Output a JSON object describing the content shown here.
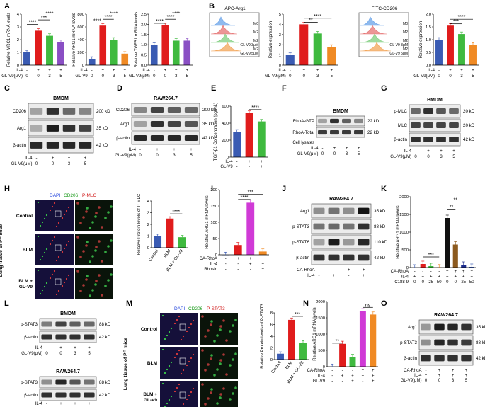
{
  "letters": [
    "A",
    "B",
    "C",
    "D",
    "E",
    "F",
    "G",
    "H",
    "I",
    "J",
    "K",
    "L",
    "M",
    "N",
    "O"
  ],
  "significance": {
    "p4": "****",
    "p3": "***",
    "p2": "**",
    "ns": "ns"
  },
  "colors": {
    "blue": "#3a5bb3",
    "red": "#e01c1c",
    "green": "#3fba3f",
    "orange": "#f08a24",
    "purple": "#8a4fc4",
    "magenta": "#d03ad6",
    "black": "#111111",
    "brown": "#8c5a1e",
    "navy": "#1b2b8c"
  },
  "conditions": {
    "il4_label": "IL-4",
    "glv9_label": "GL-V9",
    "glv9_um_label": "GL-V9(μM)",
    "glv9_um_label_spaced": "GL-V9(μM)",
    "signs": [
      "-",
      "+",
      "+",
      "+"
    ],
    "doses": [
      "0",
      "0",
      "3",
      "5"
    ]
  },
  "blot_labels": {
    "bmdm": "BMDM",
    "raw": "RAW264.7",
    "cd206": "CD206",
    "arg1": "Arg1",
    "bactin": "β-actin",
    "rhoa_gtp": "RhoA-GTP",
    "rhoa_total": "RhoA-Total",
    "cell_lysates": "Cell lysates",
    "pmlc": "p-MLC",
    "mlc": "MLC",
    "pstat3": "p-STAT3",
    "pstat6": "p-STAT6",
    "ca_rhoa": "CA-RhoA",
    "kd200": "200 kD",
    "kd35": "35 kD",
    "kd42": "42 kD",
    "kd22": "22 kD",
    "kd20": "20 kD",
    "kd88": "88 kD",
    "kd110": "110 kD"
  },
  "flow": {
    "apc_title": "APC-Arg1",
    "fitc_title": "FITC-CD206",
    "rows": [
      "M0",
      "M2",
      "M2",
      "M2"
    ],
    "row_suffixes": [
      "",
      "",
      "GL-V9 3μM",
      "GL-V9 5μM"
    ]
  },
  "tissue": {
    "dapi": "DAPI",
    "cd206": "CD206",
    "pmlc": "P-MLC",
    "pstat3": "P-STAT3",
    "side_label": "Lung tissue of PF mice",
    "rows": [
      "Control",
      "BLM",
      "BLM +",
      "GL-V9"
    ]
  },
  "chart_data": [
    {
      "id": "A1",
      "type": "bar",
      "ylabel": "Relative MRC1 mRNA levels",
      "ylim": [
        0,
        4
      ],
      "yticks": [
        "0",
        "1",
        "2",
        "3",
        "4"
      ],
      "values": [
        1.0,
        2.7,
        2.3,
        1.8
      ],
      "colors": [
        "blue",
        "red",
        "green",
        "purple"
      ]
    },
    {
      "id": "A2",
      "type": "bar",
      "ylabel": "Relative ARG1 mRNA levels",
      "ylim": [
        0,
        800
      ],
      "yticks": [
        "0",
        "200",
        "400",
        "600",
        "800"
      ],
      "values": [
        100,
        620,
        400,
        180
      ],
      "colors": [
        "blue",
        "red",
        "green",
        "orange"
      ]
    },
    {
      "id": "A3",
      "type": "bar",
      "ylabel": "Relative TGFB1 mRNA levels",
      "ylim": [
        0,
        2.5
      ],
      "yticks": [
        "0.0",
        "0.5",
        "1.0",
        "1.5",
        "2.0",
        "2.5"
      ],
      "values": [
        1.0,
        1.95,
        1.2,
        1.2
      ],
      "colors": [
        "blue",
        "red",
        "green",
        "purple"
      ]
    },
    {
      "id": "B1",
      "type": "bar",
      "ylabel": "Relative expression",
      "ylim": [
        0,
        5
      ],
      "yticks": [
        "0",
        "1",
        "2",
        "3",
        "4",
        "5"
      ],
      "values": [
        1.0,
        4.0,
        3.1,
        1.8
      ],
      "colors": [
        "blue",
        "red",
        "green",
        "orange"
      ]
    },
    {
      "id": "B2",
      "type": "bar",
      "ylabel": "Relative expression",
      "ylim": [
        0,
        2.0
      ],
      "yticks": [
        "0.0",
        "0.5",
        "1.0",
        "1.5",
        "2.0"
      ],
      "values": [
        1.0,
        1.55,
        1.22,
        0.8
      ],
      "colors": [
        "blue",
        "red",
        "green",
        "orange"
      ]
    },
    {
      "id": "E",
      "type": "bar",
      "ylabel": "TGF-β1 Concentration (pg/mL)",
      "ylim": [
        0,
        600
      ],
      "yticks": [
        "0",
        "200",
        "400",
        "600"
      ],
      "values": [
        300,
        520,
        420
      ],
      "colors": [
        "blue",
        "red",
        "green"
      ]
    },
    {
      "id": "H",
      "type": "bar",
      "ylabel": "Relative Protein levels of P-MLC",
      "ylim": [
        0,
        4
      ],
      "yticks": [
        "0",
        "1",
        "2",
        "3",
        "4"
      ],
      "categories": [
        "Control",
        "BLM",
        "BLM + GL-V9"
      ],
      "values": [
        1.0,
        2.5,
        0.9
      ],
      "colors": [
        "blue",
        "red",
        "green"
      ]
    },
    {
      "id": "I",
      "type": "bar",
      "ylabel": "Relative ARG1 mRNA levels",
      "ylim": [
        0,
        200
      ],
      "yticks": [
        "0",
        "50",
        "100",
        "150",
        "200"
      ],
      "values": [
        0,
        30,
        160,
        10
      ],
      "colors": [
        "blue",
        "red",
        "magenta",
        "orange"
      ],
      "rows": [
        {
          "label": "CA-RhoA",
          "signs": [
            "-",
            "+",
            "+",
            "+"
          ]
        },
        {
          "label": "IL-4",
          "signs": [
            "-",
            "-",
            "+",
            "+"
          ]
        },
        {
          "label": "Rhosin",
          "signs": [
            "-",
            "-",
            "-",
            "+"
          ]
        }
      ]
    },
    {
      "id": "K",
      "type": "bar",
      "ylabel": "Relative ARG1 mRNA levels",
      "ylim": [
        0,
        2000
      ],
      "yticks": [
        "0",
        "500",
        "1000",
        "1500",
        "2000"
      ],
      "values": [
        0,
        100,
        40,
        5,
        1400,
        650,
        80,
        20
      ],
      "colors": [
        "blue",
        "red",
        "green",
        "orange",
        "black",
        "brown",
        "navy",
        "blue"
      ],
      "rows": [
        {
          "label": "CA-RhoA",
          "signs": [
            "-",
            "-",
            "-",
            "-",
            "+",
            "+",
            "+",
            "+"
          ]
        },
        {
          "label": "IL-4",
          "signs": [
            "+",
            "+",
            "+",
            "+",
            "+",
            "+",
            "+",
            "+"
          ]
        },
        {
          "label": "C188-9",
          "signs": [
            "0",
            "0",
            "25",
            "50",
            "0",
            "0",
            "25",
            "50"
          ]
        }
      ]
    },
    {
      "id": "M",
      "type": "bar",
      "ylabel": "Relative Protein levels of P-STAT3",
      "ylim": [
        0,
        8
      ],
      "yticks": [
        "0",
        "2",
        "4",
        "6",
        "8"
      ],
      "categories": [
        "Control",
        "BLM",
        "BLM + GL-V9"
      ],
      "values": [
        1.0,
        6.8,
        2.9
      ],
      "colors": [
        "blue",
        "red",
        "green"
      ]
    },
    {
      "id": "N",
      "type": "bar",
      "ylabel": "Relative ARG1 mRNA levels",
      "ylim": [
        0,
        2000
      ],
      "yticks": [
        "0",
        "500",
        "1000",
        "1500",
        "2000"
      ],
      "values": [
        0,
        700,
        300,
        1700,
        1600
      ],
      "colors": [
        "blue",
        "red",
        "green",
        "magenta",
        "orange"
      ],
      "rows": [
        {
          "label": "CA-RhoA",
          "signs": [
            "-",
            "-",
            "-",
            "+",
            "+"
          ]
        },
        {
          "label": "IL-4",
          "signs": [
            "-",
            "+",
            "+",
            "+",
            "+"
          ]
        },
        {
          "label": "GL-V9",
          "signs": [
            "-",
            "-",
            "+",
            "-",
            "+"
          ]
        }
      ]
    }
  ]
}
